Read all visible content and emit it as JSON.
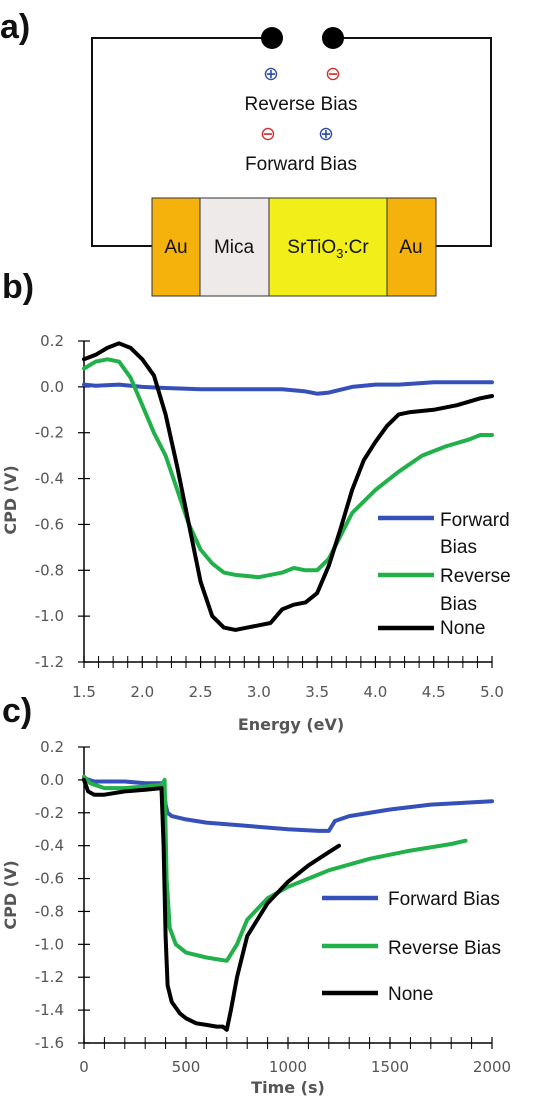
{
  "panels": {
    "a": "a)",
    "b": "b)",
    "c": "c)"
  },
  "circuit": {
    "reverse_bias_label": "Reverse Bias",
    "forward_bias_label": "Forward Bias",
    "plus_symbol": "⊕",
    "minus_symbol": "⊖",
    "colors": {
      "plus": "#2a4aa8",
      "minus": "#d32b2b"
    },
    "layers": [
      {
        "label": "Au",
        "sub": "",
        "after": "",
        "color": "#f5b20c"
      },
      {
        "label": "Mica",
        "sub": "",
        "after": "",
        "color": "#eeeaea"
      },
      {
        "label": "SrTiO",
        "sub": "3",
        "after": ":Cr",
        "color": "#f2ee1a"
      },
      {
        "label": "Au",
        "sub": "",
        "after": "",
        "color": "#f5b20c"
      }
    ]
  },
  "chart_data": [
    {
      "type": "line",
      "panel": "b)",
      "xlabel": "Energy (eV)",
      "ylabel": "CPD (V)",
      "xlim": [
        1.5,
        5.0
      ],
      "ylim": [
        -1.2,
        0.2
      ],
      "xticks": [
        "1.5",
        "2.0",
        "2.5",
        "3.0",
        "3.5",
        "4.0",
        "4.5",
        "5.0"
      ],
      "yticks": [
        "0.2",
        "0.0",
        "-0.2",
        "-0.4",
        "-0.6",
        "-0.8",
        "-1.0",
        "-1.2"
      ],
      "legend": [
        "Forward",
        "Bias",
        "Reverse",
        "Bias",
        "None"
      ],
      "series": [
        {
          "name": "Forward Bias",
          "color": "#3550b8",
          "x": [
            1.5,
            1.6,
            1.8,
            2.0,
            2.2,
            2.5,
            2.8,
            3.0,
            3.2,
            3.4,
            3.5,
            3.6,
            3.8,
            4.0,
            4.2,
            4.5,
            4.8,
            5.0
          ],
          "y": [
            0.01,
            0.005,
            0.01,
            0.0,
            -0.005,
            -0.01,
            -0.01,
            -0.01,
            -0.01,
            -0.02,
            -0.03,
            -0.025,
            0.0,
            0.01,
            0.01,
            0.02,
            0.02,
            0.02
          ]
        },
        {
          "name": "Reverse Bias",
          "color": "#22b04a",
          "x": [
            1.5,
            1.6,
            1.7,
            1.8,
            1.9,
            2.0,
            2.1,
            2.2,
            2.3,
            2.4,
            2.5,
            2.6,
            2.7,
            2.8,
            3.0,
            3.2,
            3.3,
            3.4,
            3.5,
            3.6,
            3.7,
            3.8,
            4.0,
            4.2,
            4.4,
            4.6,
            4.8,
            4.9,
            5.0
          ],
          "y": [
            0.08,
            0.11,
            0.12,
            0.11,
            0.04,
            -0.08,
            -0.2,
            -0.3,
            -0.45,
            -0.6,
            -0.71,
            -0.77,
            -0.81,
            -0.82,
            -0.83,
            -0.81,
            -0.79,
            -0.8,
            -0.8,
            -0.75,
            -0.65,
            -0.55,
            -0.45,
            -0.37,
            -0.3,
            -0.26,
            -0.23,
            -0.21,
            -0.21
          ]
        },
        {
          "name": "None",
          "color": "#000000",
          "x": [
            1.5,
            1.6,
            1.7,
            1.8,
            1.9,
            2.0,
            2.1,
            2.2,
            2.3,
            2.4,
            2.5,
            2.6,
            2.7,
            2.8,
            2.9,
            3.0,
            3.1,
            3.2,
            3.3,
            3.4,
            3.5,
            3.6,
            3.7,
            3.8,
            3.9,
            4.0,
            4.1,
            4.2,
            4.3,
            4.5,
            4.7,
            4.9,
            5.0
          ],
          "y": [
            0.12,
            0.14,
            0.17,
            0.19,
            0.17,
            0.12,
            0.05,
            -0.12,
            -0.35,
            -0.6,
            -0.85,
            -1.0,
            -1.05,
            -1.06,
            -1.05,
            -1.04,
            -1.03,
            -0.97,
            -0.95,
            -0.94,
            -0.9,
            -0.78,
            -0.62,
            -0.45,
            -0.32,
            -0.24,
            -0.17,
            -0.12,
            -0.11,
            -0.1,
            -0.08,
            -0.05,
            -0.04
          ]
        }
      ]
    },
    {
      "type": "line",
      "panel": "c)",
      "xlabel": "Time (s)",
      "ylabel": "CPD (V)",
      "xlim": [
        0,
        2000
      ],
      "ylim": [
        -1.6,
        0.2
      ],
      "xticks": [
        "0",
        "500",
        "1000",
        "1500",
        "2000"
      ],
      "yticks": [
        "0.2",
        "0.0",
        "-0.2",
        "-0.4",
        "-0.6",
        "-0.8",
        "-1.0",
        "-1.2",
        "-1.4",
        "-1.6"
      ],
      "legend": [
        "Forward Bias",
        "Reverse Bias",
        "None"
      ],
      "series": [
        {
          "name": "Forward Bias",
          "color": "#3550b8",
          "x": [
            0,
            50,
            100,
            200,
            300,
            390,
            400,
            410,
            430,
            500,
            600,
            800,
            1000,
            1150,
            1200,
            1230,
            1300,
            1500,
            1700,
            2000
          ],
          "y": [
            0.01,
            -0.01,
            -0.01,
            -0.01,
            -0.02,
            -0.02,
            -0.15,
            -0.2,
            -0.22,
            -0.24,
            -0.26,
            -0.28,
            -0.3,
            -0.31,
            -0.31,
            -0.25,
            -0.22,
            -0.18,
            -0.15,
            -0.13
          ]
        },
        {
          "name": "Reverse Bias",
          "color": "#22b04a",
          "x": [
            0,
            30,
            100,
            200,
            300,
            380,
            395,
            405,
            420,
            450,
            500,
            600,
            700,
            750,
            800,
            900,
            1000,
            1100,
            1200,
            1400,
            1600,
            1800,
            1870
          ],
          "y": [
            0.02,
            -0.02,
            -0.05,
            -0.05,
            -0.04,
            -0.03,
            0.0,
            -0.6,
            -0.9,
            -1.0,
            -1.05,
            -1.08,
            -1.1,
            -1.0,
            -0.85,
            -0.72,
            -0.65,
            -0.6,
            -0.55,
            -0.48,
            -0.43,
            -0.39,
            -0.37
          ]
        },
        {
          "name": "None",
          "color": "#000000",
          "x": [
            0,
            20,
            50,
            100,
            200,
            300,
            380,
            390,
            400,
            410,
            430,
            470,
            500,
            550,
            600,
            650,
            680,
            700,
            720,
            750,
            800,
            900,
            1000,
            1100,
            1200,
            1250
          ],
          "y": [
            0.0,
            -0.07,
            -0.09,
            -0.09,
            -0.07,
            -0.06,
            -0.05,
            -0.4,
            -0.95,
            -1.25,
            -1.35,
            -1.42,
            -1.45,
            -1.48,
            -1.49,
            -1.5,
            -1.5,
            -1.52,
            -1.4,
            -1.2,
            -0.95,
            -0.75,
            -0.62,
            -0.52,
            -0.44,
            -0.4
          ]
        }
      ]
    }
  ]
}
